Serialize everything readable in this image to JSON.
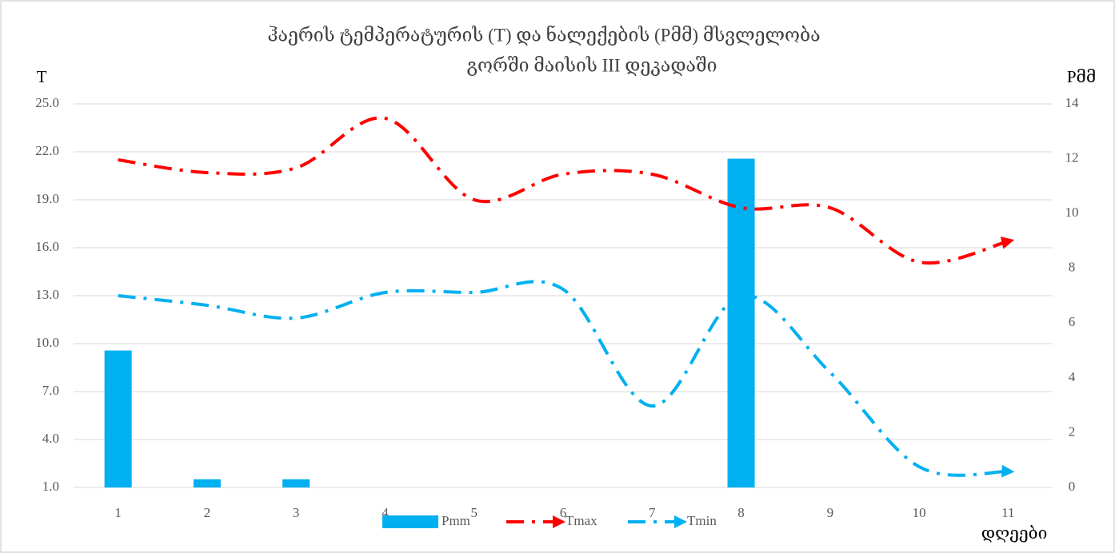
{
  "chart_data": {
    "type": "combo",
    "title": [
      "ჰაერის ტემპერატურის (T) და ნალექების (Pმმ)  მსვლელობა",
      "გორში მაისის III დეკადაში"
    ],
    "y_label": "T",
    "y2_label": "Pმმ",
    "x_label": "დღეები",
    "categories": [
      "1",
      "2",
      "3",
      "4",
      "5",
      "6",
      "7",
      "8",
      "9",
      "10",
      "11"
    ],
    "ylim": [
      1.0,
      25.0
    ],
    "yticks": [
      {
        "value": 1,
        "label": "1.0"
      },
      {
        "value": 4,
        "label": "4.0"
      },
      {
        "value": 7,
        "label": "7.0"
      },
      {
        "value": 10,
        "label": "10.0"
      },
      {
        "value": 13,
        "label": "13.0"
      },
      {
        "value": 16,
        "label": "16.0"
      },
      {
        "value": 19,
        "label": "19.0"
      },
      {
        "value": 22,
        "label": "22.0"
      },
      {
        "value": 25,
        "label": "25.0"
      }
    ],
    "y2lim": [
      0,
      14
    ],
    "y2ticks": [
      0,
      2,
      4,
      6,
      8,
      10,
      12,
      14
    ],
    "grid": true,
    "legend": "bottom",
    "series": [
      {
        "name": "Pmm",
        "type": "bar",
        "axis": "y2",
        "color": "#00b0f0",
        "values": [
          5.0,
          0.3,
          0.3,
          0,
          0,
          0,
          0,
          12.0,
          0,
          0,
          0
        ]
      },
      {
        "name": "Tmax",
        "type": "line",
        "color": "#ff0000",
        "values": [
          21.5,
          20.7,
          21.0,
          24.1,
          19.0,
          20.6,
          20.6,
          18.5,
          18.5,
          15.1,
          16.4
        ]
      },
      {
        "name": "Tmin",
        "type": "line",
        "color": "#00b0f0",
        "values": [
          13.0,
          12.4,
          11.6,
          13.2,
          13.2,
          13.4,
          6.1,
          13.0,
          8.2,
          2.3,
          2.0
        ]
      }
    ]
  }
}
